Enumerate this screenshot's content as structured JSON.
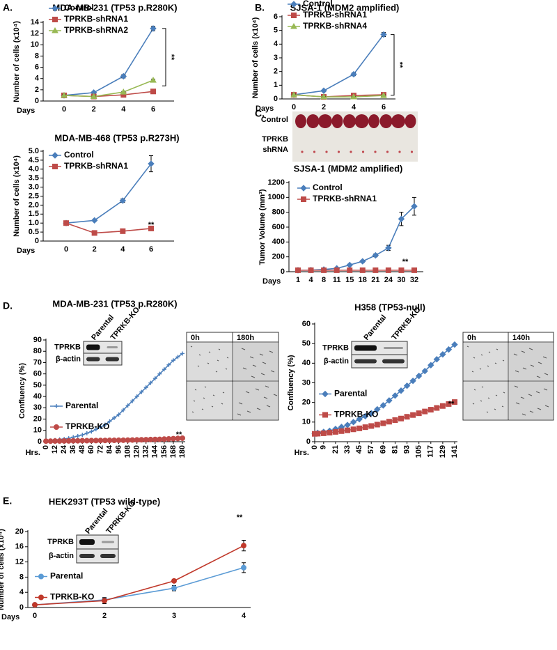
{
  "panel_labels": [
    "A.",
    "B.",
    "C.",
    "D.",
    "E."
  ],
  "chart_data": [
    {
      "type": "line",
      "title": "MDA-MB-231 (TP53 p.R280K)",
      "y_label": "Number of cells (x10⁴)",
      "x_label": "Days",
      "categories": [
        "0",
        "2",
        "4",
        "6"
      ],
      "ylim": [
        0,
        14
      ],
      "yticks": [
        0,
        2,
        4,
        6,
        8,
        10,
        12,
        14
      ],
      "legend": "upper left",
      "annotation": "**",
      "series": [
        {
          "name": "Control",
          "color": "#4a7ebb",
          "marker": "diamond",
          "values": [
            1,
            1.5,
            4.4,
            12.9
          ],
          "errors": [
            0.1,
            0.15,
            0.3,
            0.4
          ]
        },
        {
          "name": "TPRKB-shRNA1",
          "color": "#be4b48",
          "marker": "square",
          "values": [
            1,
            0.8,
            1.1,
            1.7
          ],
          "errors": [
            0.1,
            0.05,
            0.1,
            0.15
          ]
        },
        {
          "name": "TPRKB-shRNA2",
          "color": "#98b954",
          "marker": "triangle",
          "values": [
            1,
            0.8,
            1.6,
            3.7
          ],
          "errors": [
            0.1,
            0.05,
            0.1,
            0.2
          ]
        }
      ]
    },
    {
      "type": "line",
      "title": "SJSA-1 (MDM2 amplified)",
      "y_label": "Number of cells (x10⁴)",
      "x_label": "Days",
      "categories": [
        "0",
        "2",
        "4",
        "6"
      ],
      "ylim": [
        0,
        6
      ],
      "yticks": [
        0,
        1,
        2,
        3,
        4,
        5,
        6
      ],
      "legend": "upper left",
      "annotation": "**",
      "series": [
        {
          "name": "Control",
          "color": "#4a7ebb",
          "marker": "diamond",
          "values": [
            0.3,
            0.6,
            1.8,
            4.7
          ],
          "errors": [
            0.05,
            0.05,
            0.1,
            0.15
          ]
        },
        {
          "name": "TPRKB-shRNA1",
          "color": "#be4b48",
          "marker": "square",
          "values": [
            0.3,
            0.15,
            0.25,
            0.3
          ],
          "errors": [
            0.05,
            0.03,
            0.03,
            0.04
          ]
        },
        {
          "name": "TPRKB-shRNA4",
          "color": "#98b954",
          "marker": "triangle",
          "values": [
            0.3,
            0.15,
            0.15,
            0.25
          ],
          "errors": [
            0.05,
            0.03,
            0.03,
            0.04
          ]
        }
      ]
    },
    {
      "type": "line",
      "title": "MDA-MB-468 (TP53 p.R273H)",
      "y_label": "Number of cells (x10⁴)",
      "x_label": "Days",
      "categories": [
        "0",
        "2",
        "4",
        "6"
      ],
      "ylim": [
        0,
        5
      ],
      "yticks": [
        0,
        0.5,
        {
          "value": 1,
          "label": "1.0"
        },
        1.5,
        {
          "value": 2,
          "label": "2.0"
        },
        2.5,
        {
          "value": 3,
          "label": "3.0"
        },
        3.5,
        {
          "value": 4,
          "label": "4.0"
        },
        4.5,
        {
          "value": 5,
          "label": "5.0"
        }
      ],
      "legend": "upper left",
      "annotation": "**",
      "series": [
        {
          "name": "Control",
          "color": "#4a7ebb",
          "marker": "diamond",
          "values": [
            1,
            1.15,
            2.25,
            4.3
          ],
          "errors": [
            0.03,
            0.05,
            0.1,
            0.45
          ]
        },
        {
          "name": "TPRKB-shRNA1",
          "color": "#be4b48",
          "marker": "square",
          "values": [
            1,
            0.45,
            0.55,
            0.7
          ],
          "errors": [
            0.03,
            0.03,
            0.04,
            0.05
          ]
        }
      ]
    },
    {
      "type": "line",
      "title": "SJSA-1  (MDM2 amplified)",
      "y_label": "Tumor Volume (mm³)",
      "x_label": "Days",
      "photo_labels": [
        "Control",
        "TPRKB",
        "shRNA"
      ],
      "categories": [
        "1",
        "4",
        "8",
        "11",
        "15",
        "18",
        "21",
        "24",
        "30",
        "32"
      ],
      "ylim": [
        0,
        1200
      ],
      "yticks": [
        0,
        200,
        400,
        600,
        800,
        1000,
        1200
      ],
      "legend": "upper left",
      "annotation": "**",
      "series": [
        {
          "name": "Control",
          "color": "#4a7ebb",
          "marker": "diamond",
          "values": [
            20,
            22,
            30,
            45,
            90,
            140,
            220,
            320,
            710,
            880
          ],
          "errors": [
            3,
            3,
            4,
            6,
            10,
            15,
            20,
            35,
            90,
            120
          ]
        },
        {
          "name": "TPRKB-shRNA1",
          "color": "#be4b48",
          "marker": "square",
          "values": [
            20,
            20,
            20,
            20,
            20,
            20,
            20,
            20,
            20,
            20
          ],
          "errors": [
            2,
            2,
            2,
            2,
            2,
            2,
            2,
            2,
            2,
            2
          ]
        }
      ]
    },
    {
      "type": "line",
      "title": "MDA-MB-231 (TP53 p.R280K)",
      "y_label": "Confluency (%)",
      "x_label": "Hrs.",
      "blot": {
        "lanes": [
          "Parental",
          "TPRKB-KO"
        ],
        "proteins": [
          "TPRKB",
          "β-actin"
        ]
      },
      "images": [
        "0h",
        "180h"
      ],
      "x": [
        0,
        6,
        12,
        18,
        24,
        30,
        36,
        42,
        48,
        54,
        60,
        66,
        72,
        78,
        84,
        90,
        96,
        102,
        108,
        114,
        120,
        126,
        132,
        138,
        144,
        150,
        156,
        162,
        168,
        174,
        180
      ],
      "xlim": [
        0,
        180
      ],
      "xticks": [
        0,
        12,
        24,
        36,
        48,
        60,
        72,
        84,
        96,
        108,
        120,
        132,
        144,
        156,
        168,
        180
      ],
      "ylim": [
        0,
        90
      ],
      "yticks": [
        0,
        10,
        20,
        30,
        40,
        50,
        60,
        70,
        80,
        90
      ],
      "legend": "center left",
      "annotation": "**",
      "series": [
        {
          "name": "Parental",
          "color": "#4a7ebb",
          "marker": "plus",
          "values": [
            1,
            1,
            1.5,
            2,
            2.5,
            3,
            4,
            5,
            6,
            7.5,
            9,
            11,
            13,
            15,
            18,
            21,
            24,
            28,
            32,
            36,
            40,
            44,
            48,
            52,
            56,
            60,
            64,
            68,
            72,
            75,
            78
          ]
        },
        {
          "name": "TPRKB-KO",
          "color": "#be4b48",
          "marker": "circle",
          "values": [
            0.5,
            0.5,
            0.6,
            0.6,
            0.7,
            0.7,
            0.8,
            0.8,
            0.9,
            0.9,
            1,
            1,
            1.1,
            1.1,
            1.2,
            1.2,
            1.3,
            1.3,
            1.4,
            1.5,
            1.6,
            1.7,
            1.8,
            1.9,
            2,
            2.1,
            2.3,
            2.5,
            2.7,
            2.9,
            3.1
          ]
        }
      ]
    },
    {
      "type": "line",
      "title": "H358 (TP53-null)",
      "y_label": "Confluency (%)",
      "x_label": "Hrs.",
      "blot": {
        "lanes": [
          "Parental",
          "TPRKB-KO"
        ],
        "proteins": [
          "TPRKB",
          "β-actin"
        ]
      },
      "images": [
        "0h",
        "140h"
      ],
      "x": [
        0,
        3,
        9,
        15,
        21,
        27,
        33,
        39,
        45,
        51,
        57,
        63,
        69,
        75,
        81,
        87,
        93,
        99,
        105,
        111,
        117,
        123,
        129,
        135,
        141
      ],
      "xlim": [
        0,
        141
      ],
      "xticks": [
        0,
        9,
        21,
        33,
        45,
        57,
        69,
        81,
        93,
        105,
        117,
        129,
        141
      ],
      "ylim": [
        0,
        60
      ],
      "yticks": [
        0,
        10,
        20,
        30,
        40,
        50,
        60
      ],
      "legend": "center left",
      "annotation": "**",
      "series": [
        {
          "name": "Parental",
          "color": "#4a7ebb",
          "marker": "diamond",
          "values": [
            4,
            4.5,
            5,
            5.5,
            6.5,
            7.5,
            8.5,
            10,
            11.5,
            13,
            14.5,
            16.5,
            18.5,
            21,
            23.5,
            26,
            28.5,
            31,
            33.5,
            36,
            39,
            42,
            44.5,
            47,
            49.5
          ]
        },
        {
          "name": "TPRKB-KO",
          "color": "#be4b48",
          "marker": "square",
          "values": [
            4,
            4.1,
            4.3,
            4.6,
            5,
            5.4,
            5.8,
            6.3,
            6.8,
            7.4,
            8,
            8.7,
            9.4,
            10.2,
            11,
            11.8,
            12.7,
            13.6,
            14.5,
            15.4,
            16.3,
            17.2,
            18.2,
            19.2,
            20.2
          ]
        }
      ]
    },
    {
      "type": "line",
      "title": "HEK293T (TP53 wild-type)",
      "y_label": "Number of cells (x10⁴)",
      "x_label": "Days",
      "blot": {
        "lanes": [
          "Parental",
          "TPRKB-KO"
        ],
        "proteins": [
          "TPRKB",
          "β-actin"
        ]
      },
      "categories": [
        "0",
        "2",
        "3",
        "4"
      ],
      "ylim": [
        0,
        20
      ],
      "yticks": [
        0,
        4,
        8,
        12,
        16,
        20
      ],
      "legend": "center left",
      "annotation": "**",
      "series": [
        {
          "name": "Parental",
          "color": "#5b9bd5",
          "marker": "circle",
          "values": [
            0.7,
            2,
            5.1,
            10.5
          ],
          "errors": [
            0.1,
            0.6,
            0.7,
            1.3
          ]
        },
        {
          "name": "TPRKB-KO",
          "color": "#c0392b",
          "marker": "circle",
          "values": [
            0.7,
            1.8,
            7,
            16.3
          ],
          "errors": [
            0.1,
            0.8,
            0.4,
            1.4
          ]
        }
      ]
    }
  ]
}
